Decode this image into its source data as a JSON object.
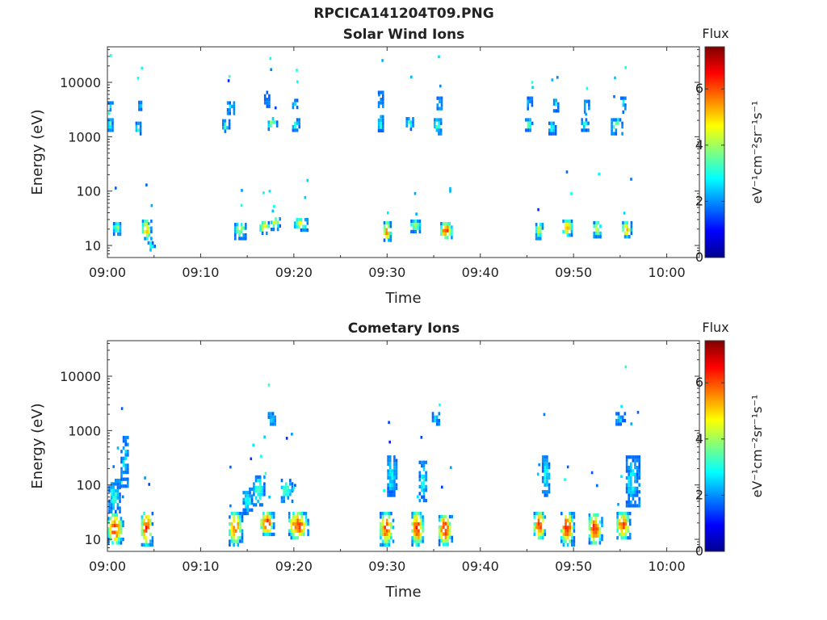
{
  "figure": {
    "title": "RPCICA141204T09.PNG"
  },
  "chart_data": [
    {
      "type": "heatmap",
      "title": "Solar Wind Ions",
      "xlabel": "Time",
      "ylabel": "Energy (eV)",
      "x_ticks": [
        "09:00",
        "09:10",
        "09:20",
        "09:30",
        "09:40",
        "09:50",
        "10:00"
      ],
      "xlim_minutes": [
        0,
        63.5
      ],
      "y_scale": "log",
      "y_ticks": [
        10,
        100,
        1000,
        10000
      ],
      "y_tick_labels": [
        "10",
        "100",
        "1000",
        "10000"
      ],
      "ylim": [
        6,
        45000
      ],
      "colorbar": {
        "label": "Flux",
        "units": "eV⁻¹cm⁻²sr⁻¹s⁻¹",
        "range": [
          0,
          7.5
        ],
        "ticks": [
          0,
          2,
          4,
          6
        ],
        "colormap": "jet"
      },
      "clusters": [
        {
          "t0": 0.0,
          "t1": 0.6,
          "e0": 1300,
          "e1": 2200,
          "v": 3.2
        },
        {
          "t0": 0.0,
          "t1": 0.5,
          "e0": 2800,
          "e1": 4500,
          "v": 2.6
        },
        {
          "t0": 0.6,
          "t1": 1.5,
          "e0": 17,
          "e1": 27,
          "v": 3.8
        },
        {
          "t0": 3.0,
          "t1": 3.5,
          "e0": 1100,
          "e1": 1900,
          "v": 3.3
        },
        {
          "t0": 3.3,
          "t1": 3.7,
          "e0": 3000,
          "e1": 4600,
          "v": 2.8
        },
        {
          "t0": 3.7,
          "t1": 4.7,
          "e0": 13,
          "e1": 30,
          "v": 5.2
        },
        {
          "t0": 4.3,
          "t1": 5.0,
          "e0": 8,
          "e1": 12,
          "v": 3.4
        },
        {
          "t0": 12.3,
          "t1": 13.1,
          "e0": 1200,
          "e1": 2100,
          "v": 3.2
        },
        {
          "t0": 12.8,
          "t1": 13.5,
          "e0": 2700,
          "e1": 4500,
          "v": 2.8
        },
        {
          "t0": 13.6,
          "t1": 14.8,
          "e0": 14,
          "e1": 26,
          "v": 4.2
        },
        {
          "t0": 16.3,
          "t1": 17.4,
          "e0": 17,
          "e1": 28,
          "v": 4.6
        },
        {
          "t0": 17.2,
          "t1": 18.2,
          "e0": 1300,
          "e1": 2300,
          "v": 4.0
        },
        {
          "t0": 16.8,
          "t1": 17.4,
          "e0": 3500,
          "e1": 7000,
          "v": 2.2
        },
        {
          "t0": 17.5,
          "t1": 18.5,
          "e0": 20,
          "e1": 33,
          "v": 4.6
        },
        {
          "t0": 19.8,
          "t1": 20.6,
          "e0": 1300,
          "e1": 2200,
          "v": 3.2
        },
        {
          "t0": 19.8,
          "t1": 20.4,
          "e0": 3000,
          "e1": 5000,
          "v": 2.4
        },
        {
          "t0": 20.0,
          "t1": 21.5,
          "e0": 20,
          "e1": 32,
          "v": 4.4
        },
        {
          "t0": 29.0,
          "t1": 29.6,
          "e0": 1200,
          "e1": 2500,
          "v": 3.0
        },
        {
          "t0": 29.0,
          "t1": 29.5,
          "e0": 3500,
          "e1": 7000,
          "v": 2.0
        },
        {
          "t0": 29.6,
          "t1": 30.4,
          "e0": 12,
          "e1": 28,
          "v": 5.6
        },
        {
          "t0": 32.0,
          "t1": 32.8,
          "e0": 1300,
          "e1": 2300,
          "v": 3.4
        },
        {
          "t0": 32.5,
          "t1": 33.6,
          "e0": 18,
          "e1": 30,
          "v": 4.0
        },
        {
          "t0": 35.0,
          "t1": 35.8,
          "e0": 1200,
          "e1": 2200,
          "v": 3.2
        },
        {
          "t0": 35.3,
          "t1": 35.9,
          "e0": 3200,
          "e1": 5500,
          "v": 2.4
        },
        {
          "t0": 35.7,
          "t1": 37.0,
          "e0": 13,
          "e1": 27,
          "v": 6.0
        },
        {
          "t0": 44.8,
          "t1": 45.6,
          "e0": 1300,
          "e1": 2200,
          "v": 3.4
        },
        {
          "t0": 45.0,
          "t1": 45.5,
          "e0": 3500,
          "e1": 5500,
          "v": 2.4
        },
        {
          "t0": 45.9,
          "t1": 46.7,
          "e0": 14,
          "e1": 26,
          "v": 4.6
        },
        {
          "t0": 47.3,
          "t1": 48.1,
          "e0": 1100,
          "e1": 1900,
          "v": 3.2
        },
        {
          "t0": 47.8,
          "t1": 48.4,
          "e0": 3000,
          "e1": 5000,
          "v": 2.8
        },
        {
          "t0": 48.8,
          "t1": 49.9,
          "e0": 15,
          "e1": 30,
          "v": 5.2
        },
        {
          "t0": 50.8,
          "t1": 51.6,
          "e0": 1400,
          "e1": 2200,
          "v": 2.8
        },
        {
          "t0": 51.1,
          "t1": 51.7,
          "e0": 3000,
          "e1": 4800,
          "v": 3.0
        },
        {
          "t0": 52.1,
          "t1": 53.0,
          "e0": 15,
          "e1": 28,
          "v": 4.6
        },
        {
          "t0": 54.0,
          "t1": 55.2,
          "e0": 1200,
          "e1": 2200,
          "v": 3.4
        },
        {
          "t0": 55.0,
          "t1": 55.6,
          "e0": 3000,
          "e1": 5500,
          "v": 2.6
        },
        {
          "t0": 55.2,
          "t1": 56.2,
          "e0": 14,
          "e1": 28,
          "v": 5.0
        }
      ]
    },
    {
      "type": "heatmap",
      "title": "Cometary Ions",
      "xlabel": "Time",
      "ylabel": "Energy (eV)",
      "x_ticks": [
        "09:00",
        "09:10",
        "09:20",
        "09:30",
        "09:40",
        "09:50",
        "10:00"
      ],
      "xlim_minutes": [
        0,
        63.5
      ],
      "y_scale": "log",
      "y_ticks": [
        10,
        100,
        1000,
        10000
      ],
      "y_tick_labels": [
        "10",
        "100",
        "1000",
        "10000"
      ],
      "ylim": [
        6,
        45000
      ],
      "colorbar": {
        "label": "Flux",
        "units": "eV⁻¹cm⁻²sr⁻¹s⁻¹",
        "range": [
          0,
          7.5
        ],
        "ticks": [
          0,
          2,
          4,
          6
        ],
        "colormap": "jet"
      },
      "clusters": [
        {
          "t0": 0.0,
          "t1": 1.6,
          "e0": 8,
          "e1": 30,
          "v": 6.0
        },
        {
          "t0": 0.1,
          "t1": 1.4,
          "e0": 30,
          "e1": 130,
          "v": 3.0
        },
        {
          "t0": 1.4,
          "t1": 2.3,
          "e0": 100,
          "e1": 800,
          "v": 2.6
        },
        {
          "t0": 3.6,
          "t1": 4.8,
          "e0": 8,
          "e1": 32,
          "v": 6.2
        },
        {
          "t0": 13.0,
          "t1": 14.4,
          "e0": 8,
          "e1": 32,
          "v": 6.0
        },
        {
          "t0": 14.5,
          "t1": 15.6,
          "e0": 30,
          "e1": 90,
          "v": 3.0
        },
        {
          "t0": 15.6,
          "t1": 16.8,
          "e0": 40,
          "e1": 150,
          "v": 3.2
        },
        {
          "t0": 16.4,
          "t1": 17.8,
          "e0": 12,
          "e1": 32,
          "v": 6.2
        },
        {
          "t0": 17.2,
          "t1": 18.0,
          "e0": 1300,
          "e1": 2200,
          "v": 2.6
        },
        {
          "t0": 18.6,
          "t1": 19.9,
          "e0": 50,
          "e1": 130,
          "v": 3.4
        },
        {
          "t0": 19.4,
          "t1": 21.5,
          "e0": 10,
          "e1": 32,
          "v": 6.0
        },
        {
          "t0": 29.2,
          "t1": 30.6,
          "e0": 8,
          "e1": 32,
          "v": 6.0
        },
        {
          "t0": 30.0,
          "t1": 31.0,
          "e0": 60,
          "e1": 350,
          "v": 2.8
        },
        {
          "t0": 32.6,
          "t1": 33.9,
          "e0": 8,
          "e1": 32,
          "v": 6.2
        },
        {
          "t0": 33.4,
          "t1": 34.3,
          "e0": 50,
          "e1": 280,
          "v": 2.8
        },
        {
          "t0": 35.5,
          "t1": 36.9,
          "e0": 8,
          "e1": 28,
          "v": 6.4
        },
        {
          "t0": 34.8,
          "t1": 35.6,
          "e0": 1300,
          "e1": 2200,
          "v": 2.6
        },
        {
          "t0": 45.7,
          "t1": 47.0,
          "e0": 10,
          "e1": 32,
          "v": 6.0
        },
        {
          "t0": 46.6,
          "t1": 47.5,
          "e0": 60,
          "e1": 350,
          "v": 2.8
        },
        {
          "t0": 48.6,
          "t1": 50.0,
          "e0": 8,
          "e1": 32,
          "v": 6.2
        },
        {
          "t0": 51.6,
          "t1": 53.0,
          "e0": 8,
          "e1": 30,
          "v": 6.2
        },
        {
          "t0": 54.5,
          "t1": 55.5,
          "e0": 1300,
          "e1": 2200,
          "v": 2.4
        },
        {
          "t0": 54.6,
          "t1": 56.0,
          "e0": 10,
          "e1": 32,
          "v": 6.0
        },
        {
          "t0": 55.6,
          "t1": 57.0,
          "e0": 40,
          "e1": 350,
          "v": 2.8
        }
      ]
    }
  ]
}
